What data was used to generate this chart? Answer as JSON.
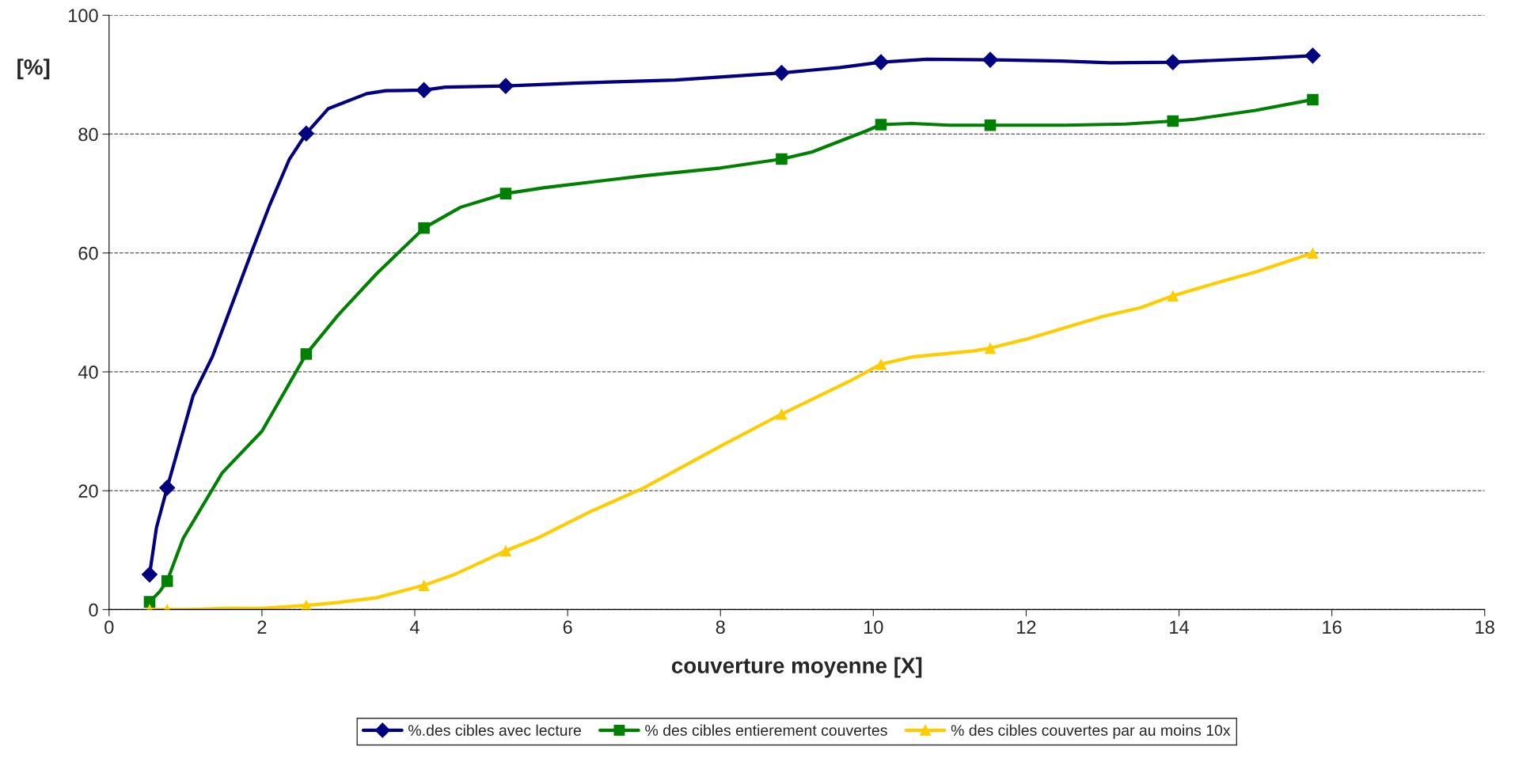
{
  "chart_data": {
    "type": "line",
    "xlabel": "couverture moyenne [X]",
    "ylabel": "[%]",
    "xlim": [
      0,
      18
    ],
    "xticks": [
      0,
      2,
      4,
      6,
      8,
      10,
      12,
      14,
      16,
      18
    ],
    "ylim": [
      0,
      100
    ],
    "yticks": [
      0,
      20,
      40,
      60,
      80,
      100
    ],
    "grid": "y",
    "legend": "bottom",
    "series": [
      {
        "color": "#000080",
        "x": [
          0.53,
          0.62,
          0.76,
          1.1,
          1.35,
          1.86,
          2.1,
          2.36,
          2.58,
          2.87,
          3.37,
          3.62,
          4.12,
          4.4,
          5.19,
          6.15,
          7.41,
          8.8,
          9.56,
          10.1,
          10.7,
          11.53,
          12.46,
          13.1,
          13.92,
          15,
          15.75
        ],
        "values": [
          5.9,
          13.8,
          20.5,
          36,
          42.5,
          60,
          68,
          75.8,
          80.1,
          84.3,
          86.8,
          87.3,
          87.4,
          87.9,
          88.1,
          88.6,
          89.1,
          90.3,
          91.2,
          92.1,
          92.6,
          92.5,
          92.3,
          92,
          92.1,
          92.7,
          93.2
        ]
      },
      {
        "type": "scatter",
        "name": "%.des cibles avec lecture",
        "color": "#000080",
        "marker": "diamond",
        "x": [
          0.53,
          0.76,
          2.58,
          4.12,
          5.19,
          8.8,
          10.1,
          11.53,
          13.92,
          15.75
        ],
        "values": [
          5.9,
          20.5,
          80.1,
          87.4,
          88.1,
          90.3,
          92.1,
          92.5,
          92.1,
          93.2
        ]
      },
      {
        "color": "#008000",
        "x": [
          0.53,
          0.66,
          0.76,
          0.97,
          1.48,
          2,
          2.58,
          3,
          3.5,
          4.12,
          4.6,
          5.19,
          5.7,
          7,
          8,
          8.8,
          9.2,
          9.6,
          9.9,
          10.1,
          10.5,
          11,
          11.53,
          12.5,
          13.3,
          13.92,
          14.2,
          15,
          15.75
        ],
        "values": [
          1.3,
          3,
          4.8,
          12,
          23,
          30,
          43,
          49.6,
          56.5,
          64.2,
          67.7,
          70,
          71,
          73,
          74.3,
          75.8,
          77,
          79,
          80.5,
          81.6,
          81.8,
          81.5,
          81.5,
          81.5,
          81.7,
          82.2,
          82.5,
          84,
          85.8
        ]
      },
      {
        "type": "scatter",
        "name": "% des cibles entierement couvertes",
        "color": "#008000",
        "marker": "square",
        "x": [
          0.53,
          0.76,
          2.58,
          4.12,
          5.19,
          8.8,
          10.1,
          11.53,
          13.92,
          15.75
        ],
        "values": [
          1.3,
          4.8,
          43,
          64.2,
          70,
          75.8,
          81.6,
          81.5,
          82.2,
          85.8
        ]
      },
      {
        "color": "#FFCC00",
        "x": [
          0.53,
          0.76,
          1,
          1.5,
          2,
          2.58,
          3,
          3.5,
          4.12,
          4.5,
          5.19,
          5.6,
          6.3,
          7,
          8,
          8.8,
          9.3,
          9.7,
          10.1,
          10.5,
          11.3,
          11.53,
          12,
          13,
          13.5,
          13.92,
          14.5,
          15,
          15.75
        ],
        "values": [
          0,
          0,
          0,
          0.2,
          0.2,
          0.7,
          1.2,
          2,
          4.1,
          5.8,
          9.9,
          12,
          16.5,
          20.5,
          27.5,
          32.9,
          36,
          38.5,
          41.3,
          42.5,
          43.5,
          44,
          45.5,
          49.3,
          50.8,
          52.8,
          55,
          56.8,
          60
        ]
      },
      {
        "type": "scatter",
        "name": "% des cibles couvertes par au moins 10x",
        "color": "#FFCC00",
        "marker": "triangle",
        "x": [
          0.53,
          0.76,
          2.58,
          4.12,
          5.19,
          8.8,
          10.1,
          11.53,
          13.92,
          15.75
        ],
        "values": [
          0,
          0,
          0.7,
          4.1,
          9.9,
          32.9,
          41.3,
          44,
          52.8,
          60
        ]
      }
    ]
  }
}
